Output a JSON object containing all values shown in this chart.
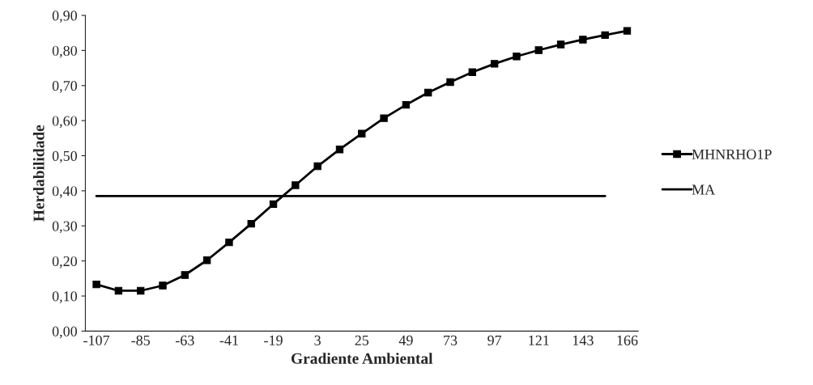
{
  "chart_data": {
    "type": "line",
    "xlabel": "Gradiente Ambiental",
    "ylabel": "Herdabilidade",
    "categories": [
      "-107",
      null,
      "-85",
      null,
      "-63",
      null,
      "-41",
      null,
      "-19",
      null,
      "3",
      null,
      "25",
      null,
      "49",
      null,
      "73",
      null,
      "97",
      null,
      "121",
      null,
      "143",
      null,
      "166"
    ],
    "series": [
      {
        "name": "MHNRHO1P",
        "color": "#000000",
        "marker": "square",
        "values": [
          0.133,
          0.115,
          0.115,
          0.13,
          0.16,
          0.202,
          0.253,
          0.306,
          0.362,
          0.416,
          0.47,
          0.518,
          0.563,
          0.607,
          0.645,
          0.68,
          0.71,
          0.738,
          0.762,
          0.783,
          0.801,
          0.817,
          0.831,
          0.844,
          0.856
        ]
      },
      {
        "name": "MA",
        "color": "#000000",
        "marker": "none",
        "values": [
          0.385,
          0.385,
          0.385,
          0.385,
          0.385,
          0.385,
          0.385,
          0.385,
          0.385,
          0.385,
          0.385,
          0.385,
          0.385,
          0.385,
          0.385,
          0.385,
          0.385,
          0.385,
          0.385,
          0.385,
          0.385,
          0.385,
          0.385,
          0.385,
          null
        ]
      }
    ],
    "ylim": [
      0,
      0.9
    ],
    "yticks": [
      {
        "value": 0,
        "label": "0,00"
      },
      {
        "value": 0.1,
        "label": "0,10"
      },
      {
        "value": 0.2,
        "label": "0,20"
      },
      {
        "value": 0.3,
        "label": "0,30"
      },
      {
        "value": 0.4,
        "label": "0,40"
      },
      {
        "value": 0.5,
        "label": "0,50"
      },
      {
        "value": 0.6,
        "label": "0,60"
      },
      {
        "value": 0.7,
        "label": "0,70"
      },
      {
        "value": 0.8,
        "label": "0,80"
      },
      {
        "value": 0.9,
        "label": "0,90"
      }
    ],
    "grid": false,
    "legend": "right",
    "line_style": "solid"
  }
}
